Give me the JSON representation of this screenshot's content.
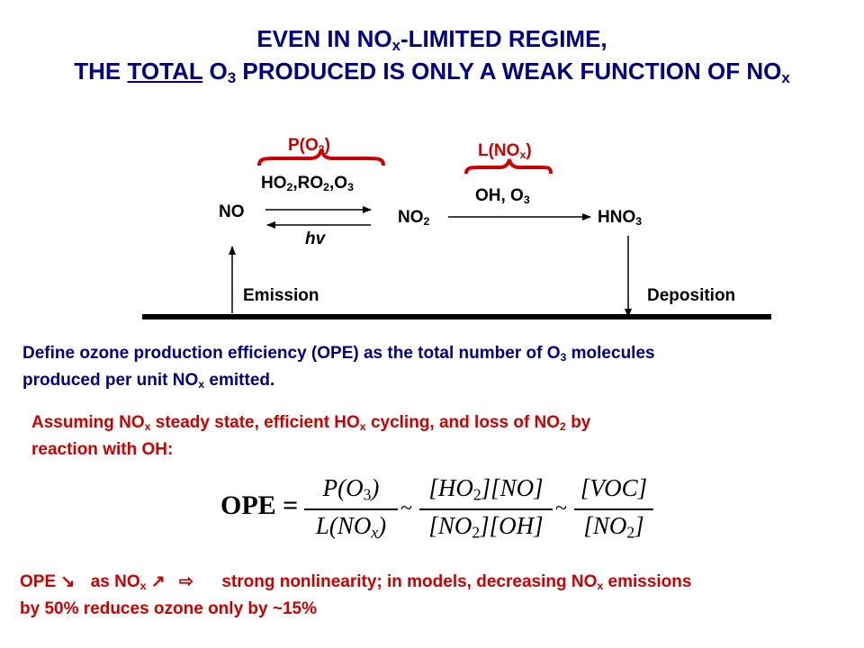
{
  "colors": {
    "title": "#000080",
    "accent": "#cc0000",
    "ink": "#000000"
  },
  "title": {
    "line1_pre": "EVEN IN NO",
    "line1_sub": "x",
    "line1_post": "-LIMITED REGIME,",
    "line2_the": "THE ",
    "line2_total": "TOTAL",
    "line2_o": " O",
    "line2_o_sub": "3",
    "line2_mid": " PRODUCED IS ONLY A WEAK FUNCTION OF NO",
    "line2_end_sub": "x"
  },
  "diagram": {
    "p_o3_pre": "P(O",
    "p_o3_sub": "3",
    "p_o3_post": ")",
    "l_nox_pre": "L(NO",
    "l_nox_sub": "x",
    "l_nox_post": ")",
    "ho2_a": "HO",
    "ho2_a_sub": "2",
    "ho2_b": ",RO",
    "ho2_b_sub": "2",
    "ho2_c": ",O",
    "ho2_c_sub": "3",
    "no": "NO",
    "no2": "NO",
    "no2_sub": "2",
    "hv": "hv",
    "oh_o3": "OH, O",
    "oh_o3_sub": "3",
    "hno3": "HNO",
    "hno3_sub": "3",
    "emission": "Emission",
    "deposition": "Deposition"
  },
  "define": {
    "a": "Define ozone production efficiency (OPE) as the total number of O",
    "a_sub": "3",
    "b": " molecules",
    "c": "produced per unit NO",
    "c_sub": "x",
    "d": " emitted."
  },
  "assume": {
    "a": "Assuming NO",
    "a_sub": "x",
    "b": " steady state, efficient HO",
    "b_sub": "x",
    "c": " cycling, and loss of NO",
    "c_sub": "2",
    "d": " by",
    "e": "reaction with OH:"
  },
  "equation": {
    "lhs": "OPE =",
    "f1_num": "P(O",
    "f1_num_sub": "3",
    "f1_num_end": ")",
    "f1_den": "L(NO",
    "f1_den_sub": "x",
    "f1_den_end": ")",
    "f2_num": "[HO",
    "f2_num_sub": "2",
    "f2_num_end": "][NO]",
    "f2_den": "[NO",
    "f2_den_sub": "2",
    "f2_den_end": "][OH]",
    "f3_num": "[VOC]",
    "f3_den": "[NO",
    "f3_den_sub": "2",
    "f3_den_end": "]",
    "sim": "~"
  },
  "conclusion": {
    "ope": "OPE",
    "down_arrow": "↘",
    "as_nox": "as NO",
    "as_nox_sub": "x",
    "up_arrow": "↗",
    "implies": "⇨",
    "a": "strong nonlinearity; in models, decreasing NO",
    "a_sub": "x",
    "b": " emissions",
    "c": "by 50% reduces ozone only by ~15%"
  }
}
